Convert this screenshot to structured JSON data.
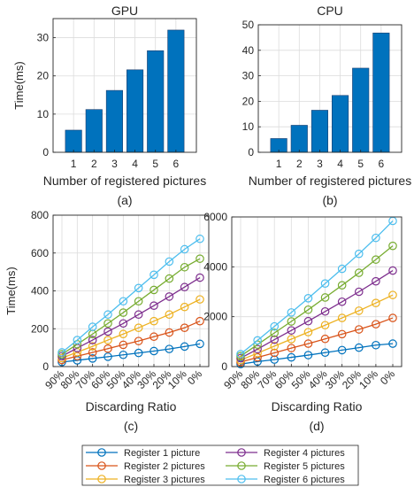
{
  "chart_data": [
    {
      "type": "bar",
      "title": "GPU",
      "xlabel": "Number of registered pictures",
      "ylabel": "Time(ms)",
      "caption": "(a)",
      "categories": [
        "1",
        "2",
        "3",
        "4",
        "5",
        "6"
      ],
      "values": [
        5.8,
        11.2,
        16.2,
        21.6,
        26.6,
        32.0
      ],
      "ylim": [
        0,
        35
      ],
      "yticks": [
        "0",
        "10",
        "20",
        "30"
      ],
      "grid": true,
      "bar_color": "#0072BD"
    },
    {
      "type": "bar",
      "title": "CPU",
      "xlabel": "Number of registered pictures",
      "ylabel": "",
      "caption": "(b)",
      "categories": [
        "1",
        "2",
        "3",
        "4",
        "5",
        "6"
      ],
      "values": [
        5.4,
        10.6,
        16.5,
        22.3,
        33.0,
        46.8
      ],
      "ylim": [
        0,
        50
      ],
      "yticks": [
        "0",
        "10",
        "20",
        "30",
        "40",
        "50"
      ],
      "grid": true,
      "bar_color": "#0072BD"
    },
    {
      "type": "line",
      "xlabel": "Discarding Ratio",
      "ylabel": "Time(ms)",
      "caption": "(c)",
      "x": [
        "90%",
        "80%",
        "70%",
        "60%",
        "50%",
        "40%",
        "30%",
        "20%",
        "10%",
        "0%"
      ],
      "ylim": [
        0,
        800
      ],
      "yticks": [
        "0",
        "200",
        "400",
        "600",
        "800"
      ],
      "grid": true,
      "series": [
        {
          "name": "Register 1 picture",
          "color": "#0072BD",
          "values": [
            24,
            33,
            43,
            52,
            62,
            72,
            82,
            93,
            106,
            120
          ]
        },
        {
          "name": "Register 2 pictures",
          "color": "#D95319",
          "values": [
            35,
            55,
            75,
            95,
            115,
            135,
            158,
            180,
            205,
            240
          ]
        },
        {
          "name": "Register 3 pictures",
          "color": "#EDB120",
          "values": [
            45,
            76,
            107,
            140,
            172,
            205,
            240,
            275,
            315,
            355
          ]
        },
        {
          "name": "Register 4 pictures",
          "color": "#7E2F8E",
          "values": [
            55,
            98,
            140,
            185,
            228,
            275,
            322,
            370,
            420,
            470
          ]
        },
        {
          "name": "Register 5 pictures",
          "color": "#77AC30",
          "values": [
            65,
            118,
            172,
            228,
            285,
            345,
            405,
            465,
            525,
            570
          ]
        },
        {
          "name": "Register 6 pictures",
          "color": "#4DBEEE",
          "values": [
            75,
            140,
            210,
            275,
            345,
            415,
            485,
            555,
            620,
            675
          ]
        }
      ]
    },
    {
      "type": "line",
      "xlabel": "Discarding Ratio",
      "ylabel": "",
      "caption": "(d)",
      "x": [
        "90%",
        "80%",
        "70%",
        "60%",
        "50%",
        "40%",
        "30%",
        "20%",
        "10%",
        "0%"
      ],
      "ylim": [
        0,
        6000
      ],
      "yticks": [
        "0",
        "2000",
        "4000",
        "6000"
      ],
      "grid": true,
      "series": [
        {
          "name": "Register 1 picture",
          "color": "#0072BD",
          "values": [
            100,
            200,
            280,
            370,
            460,
            560,
            660,
            760,
            860,
            920
          ]
        },
        {
          "name": "Register 2 pictures",
          "color": "#D95319",
          "values": [
            180,
            370,
            550,
            740,
            920,
            1110,
            1300,
            1490,
            1700,
            1950
          ]
        },
        {
          "name": "Register 3 pictures",
          "color": "#EDB120",
          "values": [
            260,
            540,
            820,
            1100,
            1380,
            1660,
            1950,
            2240,
            2550,
            2870
          ]
        },
        {
          "name": "Register 4 pictures",
          "color": "#7E2F8E",
          "values": [
            340,
            700,
            1080,
            1450,
            1820,
            2210,
            2600,
            3000,
            3420,
            3850
          ]
        },
        {
          "name": "Register 5 pictures",
          "color": "#77AC30",
          "values": [
            420,
            880,
            1350,
            1810,
            2280,
            2770,
            3260,
            3760,
            4290,
            4840
          ]
        },
        {
          "name": "Register 6 pictures",
          "color": "#4DBEEE",
          "values": [
            500,
            1050,
            1610,
            2170,
            2740,
            3330,
            3920,
            4520,
            5160,
            5840
          ]
        }
      ]
    }
  ],
  "legend": [
    {
      "label": "Register 1 picture",
      "color": "#0072BD"
    },
    {
      "label": "Register 4 pictures",
      "color": "#7E2F8E"
    },
    {
      "label": "Register 2 pictures",
      "color": "#D95319"
    },
    {
      "label": "Register 5 pictures",
      "color": "#77AC30"
    },
    {
      "label": "Register 3 pictures",
      "color": "#EDB120"
    },
    {
      "label": "Register 6 pictures",
      "color": "#4DBEEE"
    }
  ]
}
